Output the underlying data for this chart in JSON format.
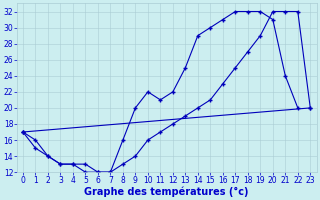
{
  "background_color": "#cceef0",
  "grid_color": "#aaccd4",
  "line_color": "#0000bb",
  "xlabel": "Graphe des températures (°c)",
  "xlabel_fontsize": 7,
  "xlabel_color": "#0000cc",
  "tick_color": "#0000cc",
  "tick_fontsize": 5.5,
  "ylim": [
    12,
    33
  ],
  "xlim": [
    -0.5,
    23.5
  ],
  "yticks": [
    12,
    14,
    16,
    18,
    20,
    22,
    24,
    26,
    28,
    30,
    32
  ],
  "xticks": [
    0,
    1,
    2,
    3,
    4,
    5,
    6,
    7,
    8,
    9,
    10,
    11,
    12,
    13,
    14,
    15,
    16,
    17,
    18,
    19,
    20,
    21,
    22,
    23
  ],
  "line1_x": [
    0,
    1,
    2,
    3,
    4,
    5,
    6,
    7,
    8,
    9,
    10,
    11,
    12,
    13,
    14,
    15,
    16,
    17,
    18,
    19,
    20,
    21,
    22
  ],
  "line1_y": [
    17,
    16,
    14,
    13,
    13,
    13,
    12,
    12,
    16,
    20,
    22,
    21,
    22,
    25,
    29,
    30,
    31,
    32,
    32,
    32,
    31,
    24,
    20
  ],
  "line2_x": [
    0,
    1,
    2,
    3,
    4,
    5,
    6,
    7,
    8,
    9,
    10,
    11,
    12,
    13,
    14,
    15,
    16,
    17,
    18,
    19,
    20,
    21,
    22,
    23
  ],
  "line2_y": [
    17,
    15,
    14,
    13,
    13,
    12,
    12,
    12,
    13,
    14,
    16,
    17,
    18,
    19,
    20,
    21,
    23,
    25,
    27,
    29,
    32,
    32,
    32,
    20
  ],
  "line3_x": [
    0,
    23
  ],
  "line3_y": [
    17,
    20
  ],
  "marker": "+",
  "markersize": 3.5,
  "linewidth": 0.8
}
